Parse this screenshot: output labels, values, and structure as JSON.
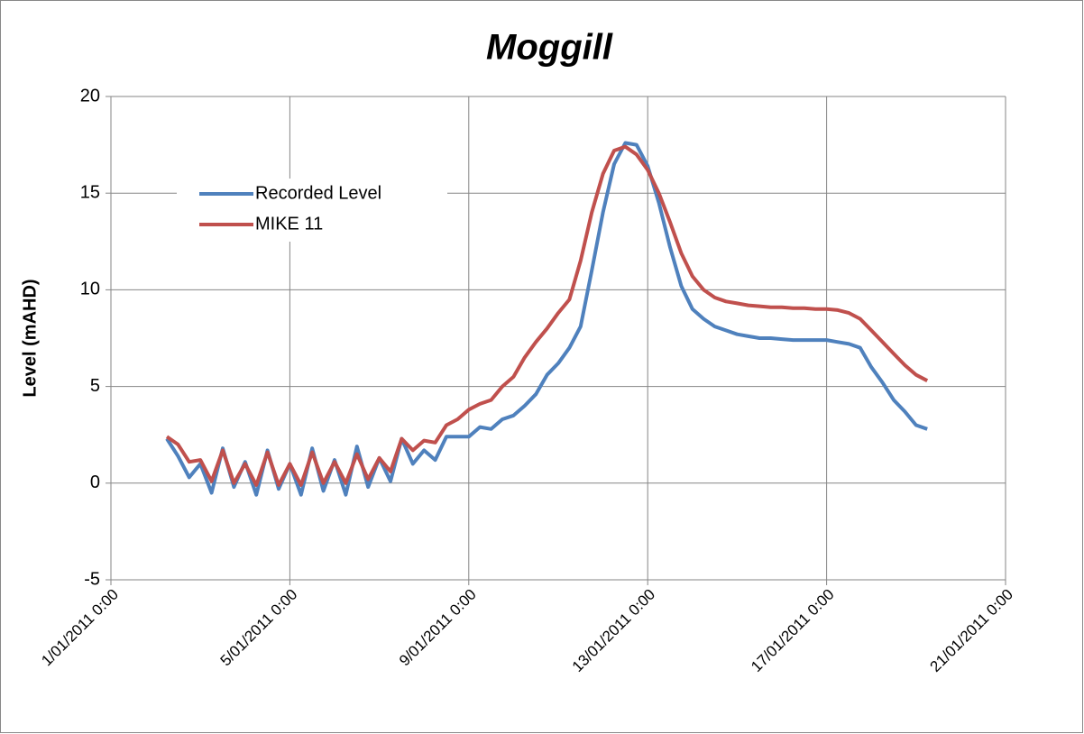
{
  "chart_data": {
    "type": "line",
    "title": "Moggill",
    "title_color": "#0070c0",
    "y_label": "Level (mAHD)",
    "x": [
      "2011-01-02 06:00",
      "2011-01-02 12:00",
      "2011-01-02 18:00",
      "2011-01-03 00:00",
      "2011-01-03 06:00",
      "2011-01-03 12:00",
      "2011-01-03 18:00",
      "2011-01-04 00:00",
      "2011-01-04 06:00",
      "2011-01-04 12:00",
      "2011-01-04 18:00",
      "2011-01-05 00:00",
      "2011-01-05 06:00",
      "2011-01-05 12:00",
      "2011-01-05 18:00",
      "2011-01-06 00:00",
      "2011-01-06 06:00",
      "2011-01-06 12:00",
      "2011-01-06 18:00",
      "2011-01-07 00:00",
      "2011-01-07 06:00",
      "2011-01-07 12:00",
      "2011-01-07 18:00",
      "2011-01-08 00:00",
      "2011-01-08 06:00",
      "2011-01-08 12:00",
      "2011-01-08 18:00",
      "2011-01-09 00:00",
      "2011-01-09 06:00",
      "2011-01-09 12:00",
      "2011-01-09 18:00",
      "2011-01-10 00:00",
      "2011-01-10 06:00",
      "2011-01-10 12:00",
      "2011-01-10 18:00",
      "2011-01-11 00:00",
      "2011-01-11 06:00",
      "2011-01-11 12:00",
      "2011-01-11 18:00",
      "2011-01-12 00:00",
      "2011-01-12 06:00",
      "2011-01-12 12:00",
      "2011-01-12 18:00",
      "2011-01-13 00:00",
      "2011-01-13 06:00",
      "2011-01-13 12:00",
      "2011-01-13 18:00",
      "2011-01-14 00:00",
      "2011-01-14 06:00",
      "2011-01-14 12:00",
      "2011-01-14 18:00",
      "2011-01-15 00:00",
      "2011-01-15 06:00",
      "2011-01-15 12:00",
      "2011-01-15 18:00",
      "2011-01-16 00:00",
      "2011-01-16 06:00",
      "2011-01-16 12:00",
      "2011-01-16 18:00",
      "2011-01-17 00:00",
      "2011-01-17 06:00",
      "2011-01-17 12:00",
      "2011-01-17 18:00",
      "2011-01-18 00:00",
      "2011-01-18 06:00",
      "2011-01-18 12:00",
      "2011-01-18 18:00",
      "2011-01-19 00:00",
      "2011-01-19 06:00"
    ],
    "series": [
      {
        "name": "Recorded Level",
        "color": "#4f81bd",
        "values": [
          2.3,
          1.4,
          0.3,
          1.0,
          -0.5,
          1.8,
          -0.2,
          1.1,
          -0.6,
          1.7,
          -0.3,
          1.0,
          -0.6,
          1.8,
          -0.4,
          1.2,
          -0.6,
          1.9,
          -0.2,
          1.3,
          0.1,
          2.3,
          1.0,
          1.7,
          1.2,
          2.4,
          2.4,
          2.4,
          2.9,
          2.8,
          3.3,
          3.5,
          4.0,
          4.6,
          5.6,
          6.2,
          7.0,
          8.1,
          11.0,
          14.0,
          16.5,
          17.6,
          17.5,
          16.4,
          14.5,
          12.2,
          10.2,
          9.0,
          8.5,
          8.1,
          7.9,
          7.7,
          7.6,
          7.5,
          7.5,
          7.45,
          7.4,
          7.4,
          7.4,
          7.4,
          7.3,
          7.2,
          7.0,
          6.0,
          5.2,
          4.3,
          3.7,
          3.0,
          2.8
        ]
      },
      {
        "name": "MIKE 11",
        "color": "#c0504d",
        "values": [
          2.4,
          2.0,
          1.1,
          1.2,
          0.1,
          1.7,
          0.0,
          1.0,
          -0.1,
          1.6,
          -0.1,
          1.0,
          -0.1,
          1.6,
          0.0,
          1.1,
          0.0,
          1.5,
          0.2,
          1.3,
          0.6,
          2.3,
          1.7,
          2.2,
          2.1,
          3.0,
          3.3,
          3.8,
          4.1,
          4.3,
          5.0,
          5.5,
          6.5,
          7.3,
          8.0,
          8.8,
          9.5,
          11.5,
          14.0,
          16.0,
          17.2,
          17.4,
          17.0,
          16.2,
          15.0,
          13.5,
          11.9,
          10.7,
          10.0,
          9.6,
          9.4,
          9.3,
          9.2,
          9.15,
          9.1,
          9.1,
          9.05,
          9.05,
          9.0,
          9.0,
          8.95,
          8.8,
          8.5,
          7.9,
          7.3,
          6.7,
          6.1,
          5.6,
          5.3
        ]
      }
    ],
    "xlim": [
      "2011-01-01 00:00",
      "2011-01-21 00:00"
    ],
    "xticks": [
      {
        "value": "2011-01-01 00:00",
        "label": "1/01/2011 0:00"
      },
      {
        "value": "2011-01-05 00:00",
        "label": "5/01/2011 0:00"
      },
      {
        "value": "2011-01-09 00:00",
        "label": "9/01/2011 0:00"
      },
      {
        "value": "2011-01-13 00:00",
        "label": "13/01/2011 0:00"
      },
      {
        "value": "2011-01-17 00:00",
        "label": "17/01/2011 0:00"
      },
      {
        "value": "2011-01-21 00:00",
        "label": "21/01/2011 0:00"
      }
    ],
    "ylim": [
      -5,
      20
    ],
    "yticks": [
      -5,
      0,
      5,
      10,
      15,
      20
    ],
    "grid": true,
    "legend": "upper left"
  }
}
